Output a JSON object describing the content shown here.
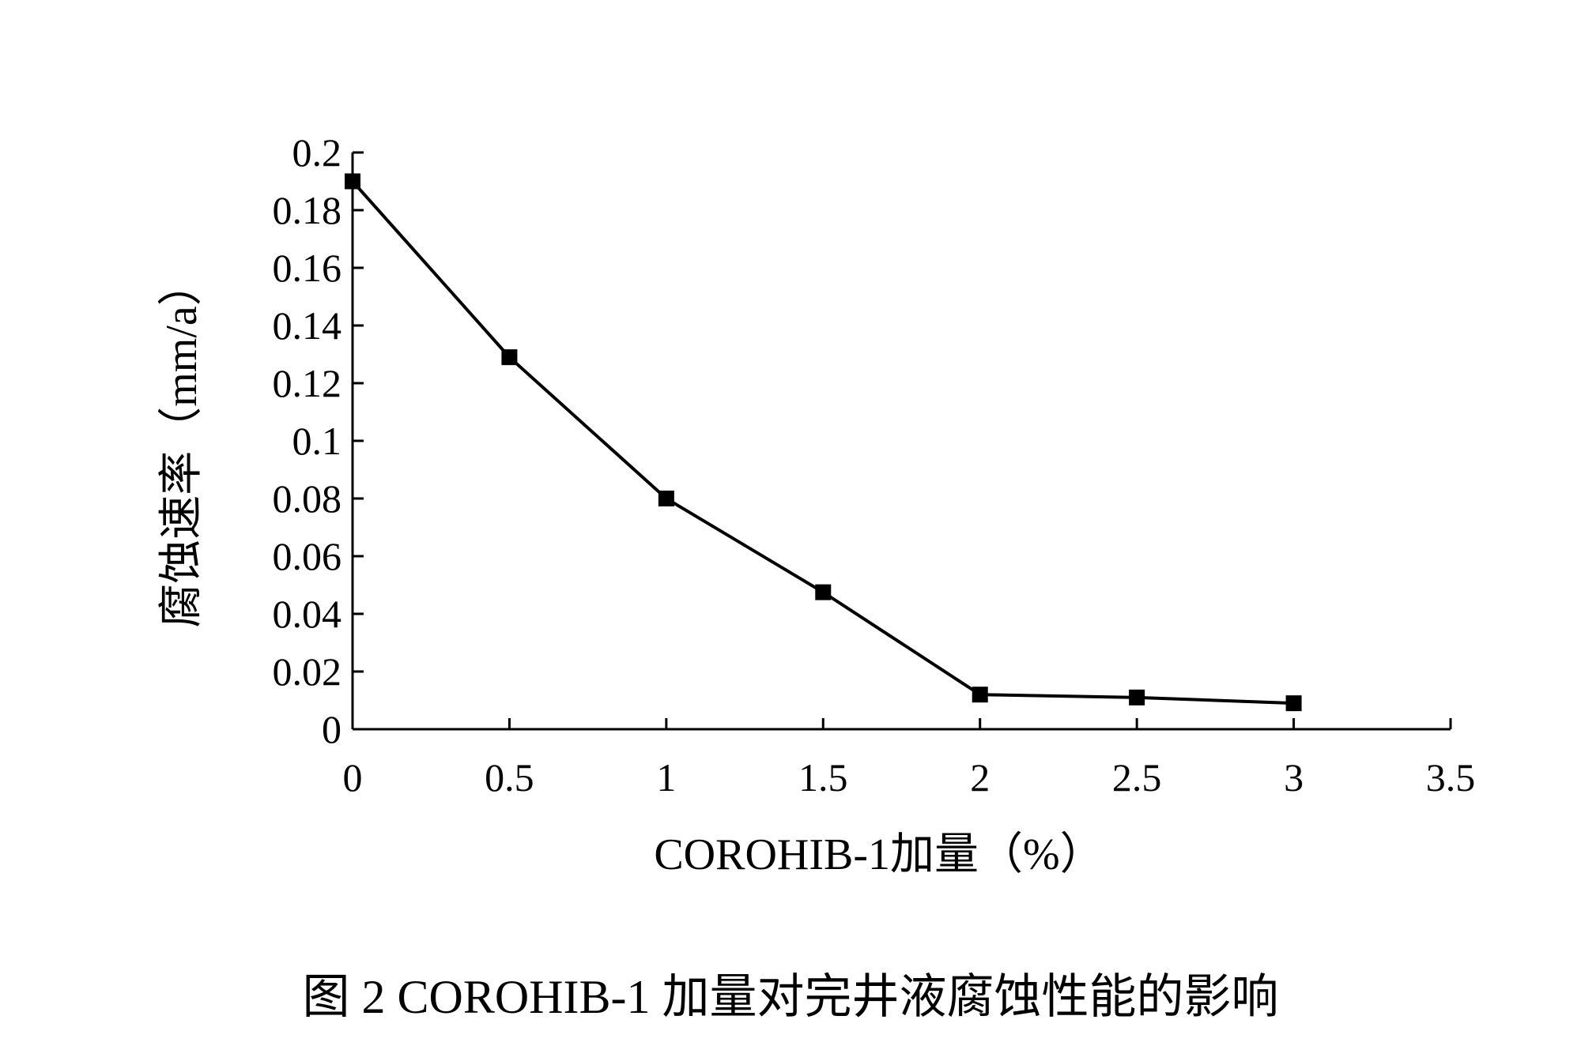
{
  "chart_data": {
    "type": "line",
    "title": "",
    "caption": "图 2 COROHIB-1 加量对完井液腐蚀性能的影响",
    "xlabel": "COROHIB-1加量（%）",
    "ylabel": "腐蚀速率（mm/a）",
    "xlim": [
      0,
      3.5
    ],
    "ylim": [
      0,
      0.2
    ],
    "x_ticks": [
      "0",
      "0.5",
      "1",
      "1.5",
      "2",
      "2.5",
      "3",
      "3.5"
    ],
    "y_ticks": [
      "0",
      "0.02",
      "0.04",
      "0.06",
      "0.08",
      "0.1",
      "0.12",
      "0.14",
      "0.16",
      "0.18",
      "0.2"
    ],
    "grid": false,
    "legend": "none",
    "series": [
      {
        "marker": "square",
        "color": "#000000",
        "points": [
          {
            "x": 0,
            "y": 0.19
          },
          {
            "x": 0.5,
            "y": 0.129
          },
          {
            "x": 1,
            "y": 0.08
          },
          {
            "x": 1.5,
            "y": 0.0475
          },
          {
            "x": 2,
            "y": 0.012
          },
          {
            "x": 2.5,
            "y": 0.011
          },
          {
            "x": 3,
            "y": 0.009
          }
        ]
      }
    ]
  }
}
